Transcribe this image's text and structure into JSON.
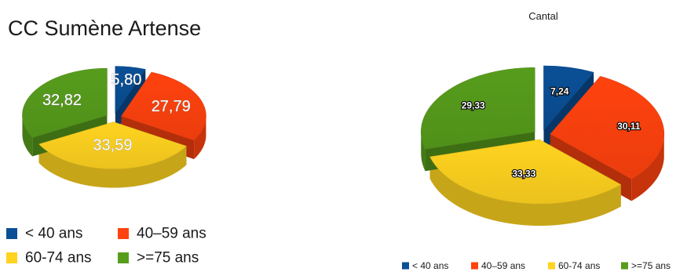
{
  "chart_data": [
    {
      "type": "pie",
      "title": "CC Sumène Artense",
      "categories": [
        "< 40 ans",
        "40–59 ans",
        "60-74 ans",
        ">=75 ans"
      ],
      "values": [
        5.8,
        27.79,
        33.59,
        32.82
      ],
      "value_labels": [
        "5,80",
        "27,79",
        "33,59",
        "32,82"
      ],
      "colors": [
        "#0a4f96",
        "#ff420e",
        "#ffd320",
        "#579d1c"
      ],
      "exploded": true,
      "three_d": true,
      "legend": "bottom"
    },
    {
      "type": "pie",
      "title": "Cantal",
      "categories": [
        "< 40 ans",
        "40–59 ans",
        "60-74 ans",
        ">=75 ans"
      ],
      "values": [
        7.24,
        30.11,
        33.33,
        29.33
      ],
      "value_labels": [
        "7,24",
        "30,11",
        "33,33",
        "29,33"
      ],
      "colors": [
        "#0a4f96",
        "#ff420e",
        "#ffd320",
        "#579d1c"
      ],
      "exploded": true,
      "three_d": true,
      "legend": "bottom"
    }
  ]
}
